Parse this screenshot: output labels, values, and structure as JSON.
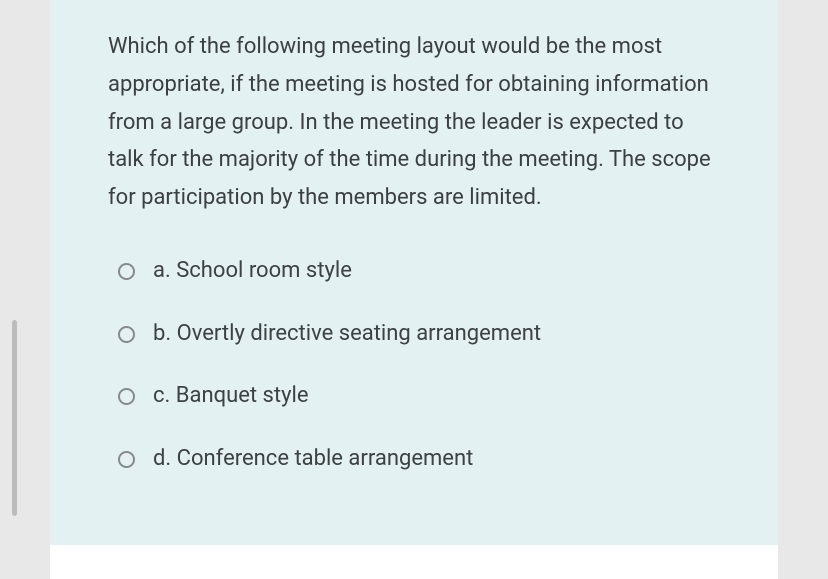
{
  "question": {
    "text": "Which of the following meeting layout would be the most appropriate, if the meeting is hosted for obtaining information from a large group. In the meeting the leader is expected to talk for the majority of the time during the meeting. The scope for participation by the members are limited."
  },
  "options": [
    {
      "label": "a. School room style"
    },
    {
      "label": "b. Overtly directive seating arrangement"
    },
    {
      "label": "c. Banquet style"
    },
    {
      "label": "d. Conference table arrangement"
    }
  ],
  "styling": {
    "card_background": "#e3f1f2",
    "page_background": "#e8e8e8",
    "outer_background": "#ffffff",
    "question_color": "#3b3f42",
    "option_color": "#3d4144",
    "radio_border": "#868a8d",
    "question_fontsize": 22,
    "option_fontsize": 22,
    "scroll_color": "#bcbcbc"
  }
}
